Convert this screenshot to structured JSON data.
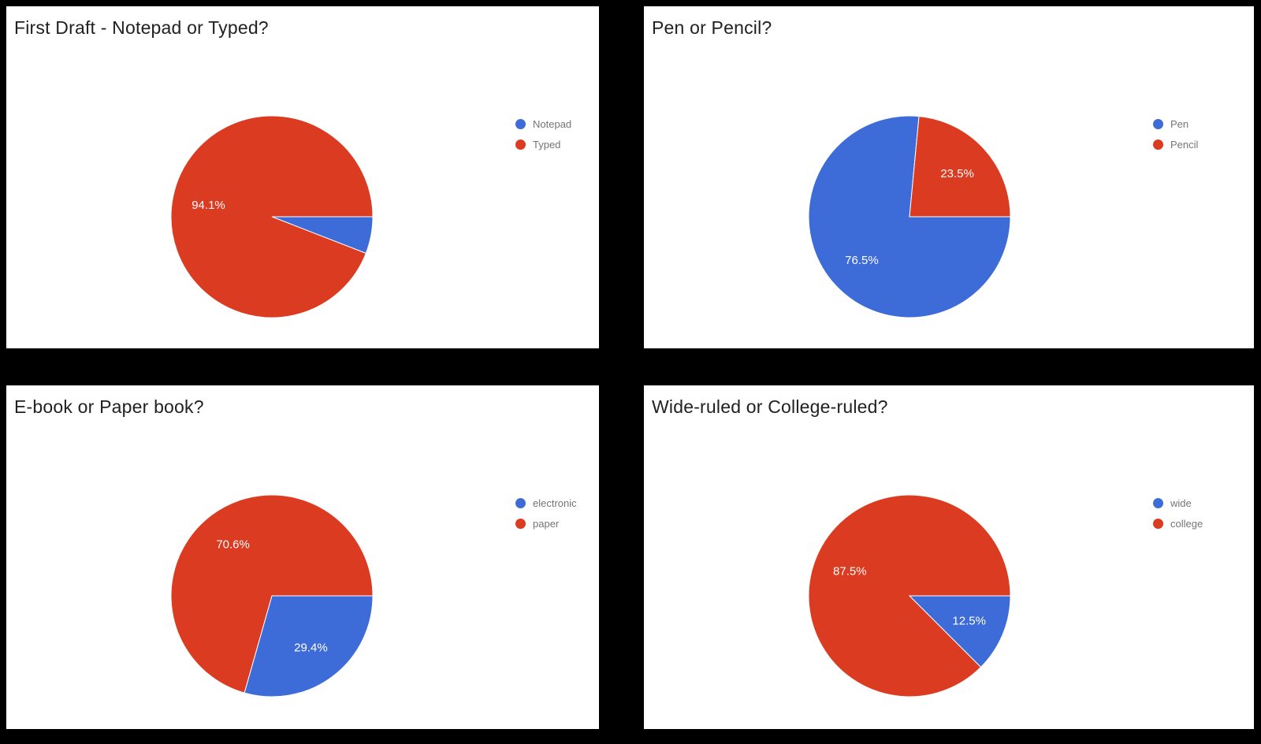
{
  "page": {
    "background": "#000000",
    "panel_background": "#FFFFFF"
  },
  "colors": {
    "series_blue": "#3D6CD8",
    "series_red": "#DB3B21",
    "title_text": "#212121",
    "legend_text": "#757575",
    "pct_label_text": "#FFFFFF"
  },
  "chart_data": [
    {
      "type": "pie",
      "title": "First Draft - Notepad or Typed?",
      "legend_position": "right",
      "rotation_deg": 90,
      "direction": "clockwise",
      "slices": [
        {
          "label": "Notepad",
          "value": 5.9,
          "pct_label": "",
          "color": "#3D6CD8"
        },
        {
          "label": "Typed",
          "value": 94.1,
          "pct_label": "94.1%",
          "color": "#DB3B21"
        }
      ]
    },
    {
      "type": "pie",
      "title": "Pen or Pencil?",
      "legend_position": "right",
      "rotation_deg": 90,
      "direction": "clockwise",
      "slices": [
        {
          "label": "Pen",
          "value": 76.5,
          "pct_label": "76.5%",
          "color": "#3D6CD8"
        },
        {
          "label": "Pencil",
          "value": 23.5,
          "pct_label": "23.5%",
          "color": "#DB3B21"
        }
      ]
    },
    {
      "type": "pie",
      "title": "E-book or Paper book?",
      "legend_position": "right",
      "rotation_deg": 90,
      "direction": "clockwise",
      "slices": [
        {
          "label": "electronic",
          "value": 29.4,
          "pct_label": "29.4%",
          "color": "#3D6CD8"
        },
        {
          "label": "paper",
          "value": 70.6,
          "pct_label": "70.6%",
          "color": "#DB3B21"
        }
      ]
    },
    {
      "type": "pie",
      "title": "Wide-ruled or College-ruled?",
      "legend_position": "right",
      "rotation_deg": 90,
      "direction": "clockwise",
      "slices": [
        {
          "label": "wide",
          "value": 12.5,
          "pct_label": "12.5%",
          "color": "#3D6CD8"
        },
        {
          "label": "college",
          "value": 87.5,
          "pct_label": "87.5%",
          "color": "#DB3B21"
        }
      ]
    }
  ]
}
